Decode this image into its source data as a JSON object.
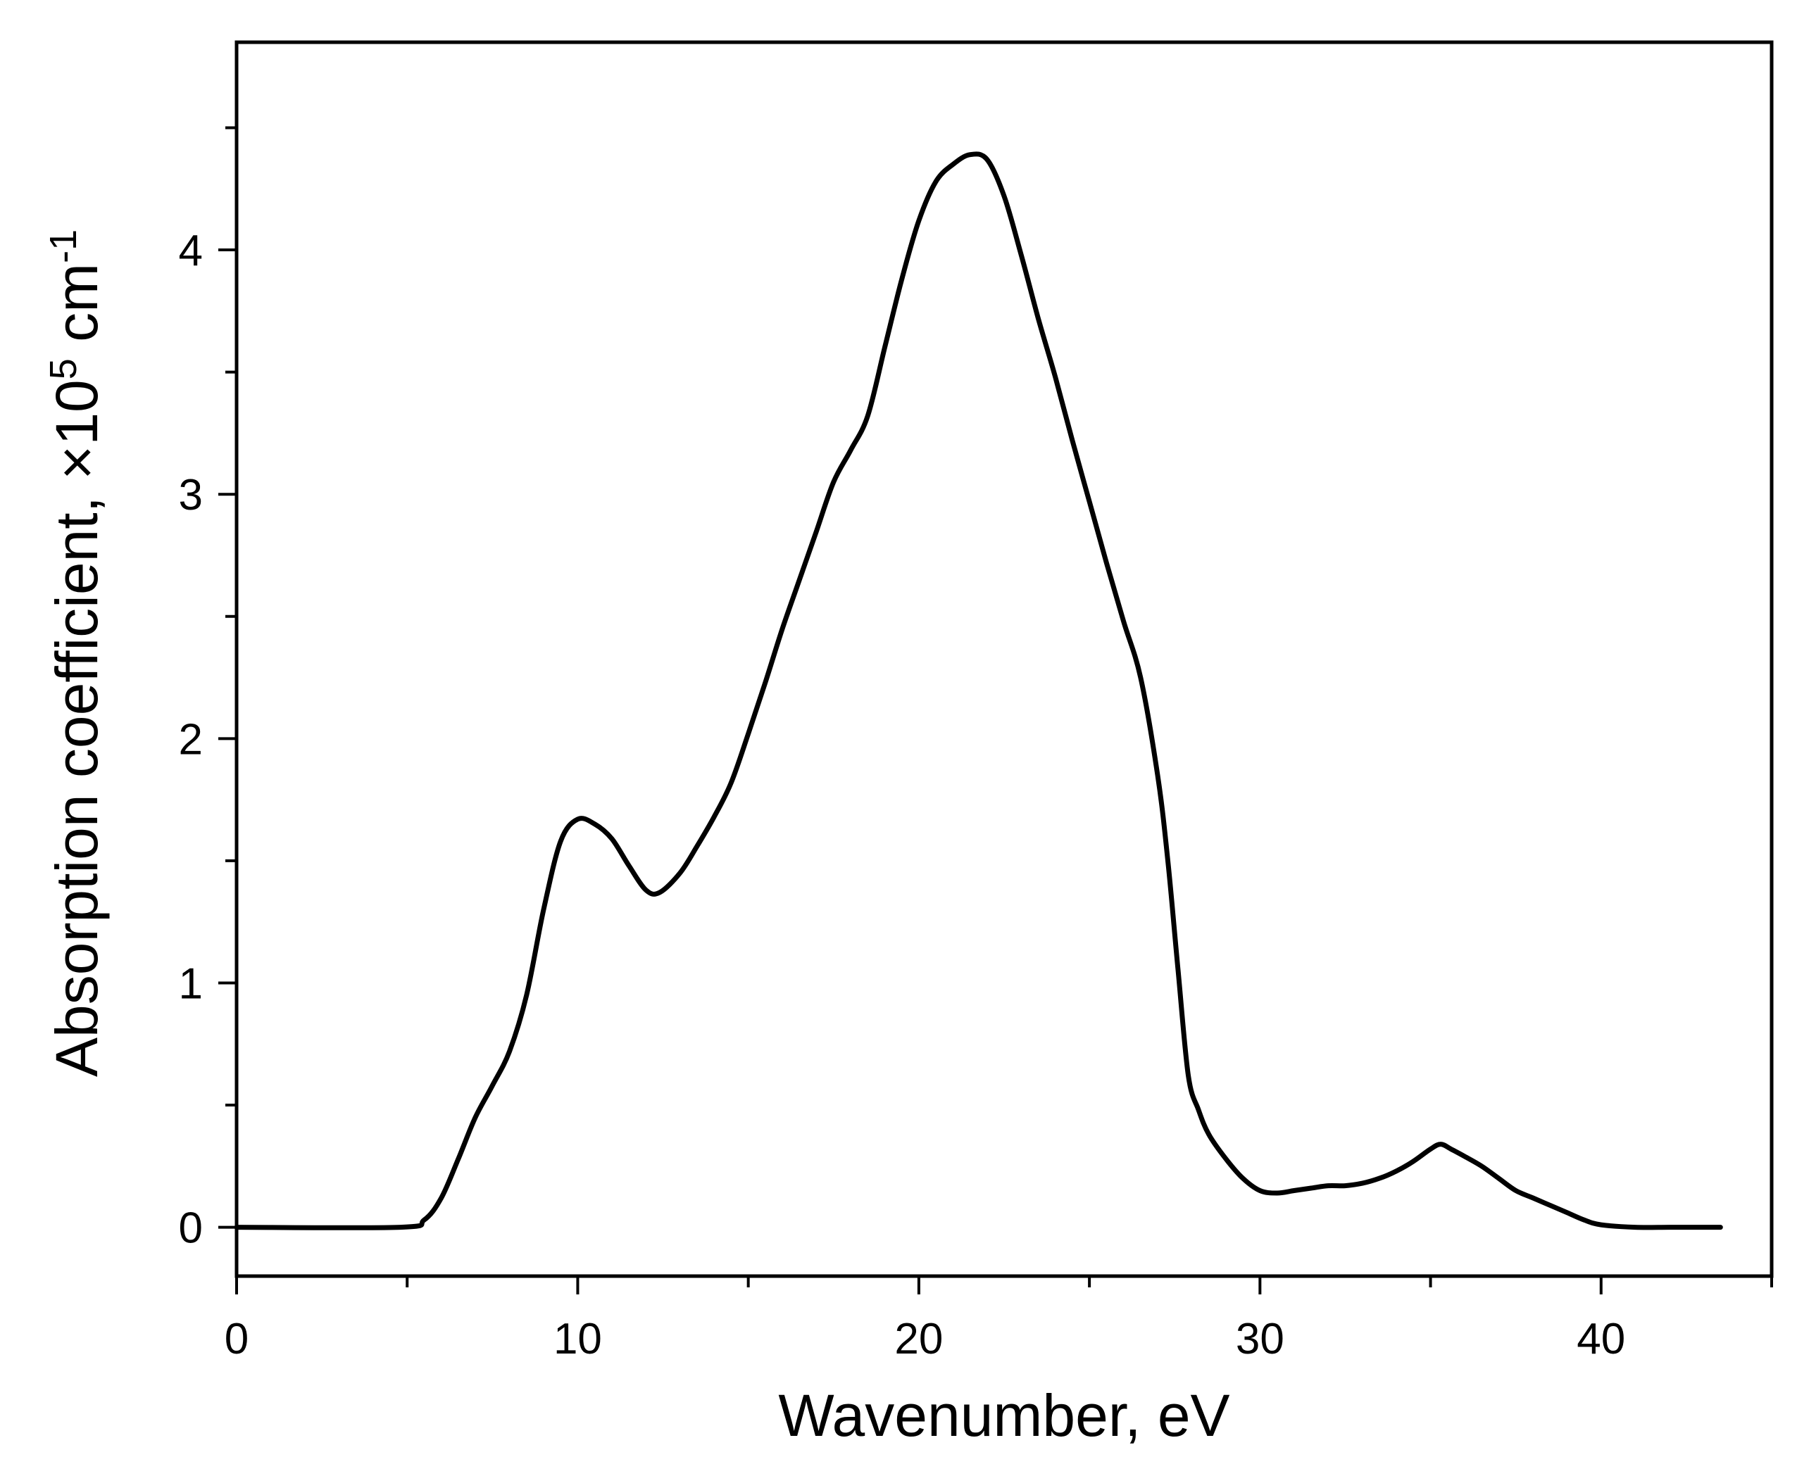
{
  "chart_data": {
    "type": "line",
    "title": "",
    "xlabel": "Wavenumber, eV",
    "ylabel_prefix": "Absorption coefficient, ×10",
    "ylabel_exp": "5",
    "ylabel_unit": " cm",
    "ylabel_unit_exp": "-1",
    "xlim": [
      0,
      45
    ],
    "ylim": [
      -0.2,
      4.85
    ],
    "xticks_major": [
      0,
      10,
      20,
      30,
      40
    ],
    "xticks_minor": [
      5,
      15,
      25,
      35,
      45
    ],
    "yticks_major": [
      0,
      1,
      2,
      3,
      4
    ],
    "yticks_minor": [
      0.5,
      1.5,
      2.5,
      3.5,
      4.5
    ],
    "xtick_labels": [
      "0",
      "10",
      "20",
      "30",
      "40"
    ],
    "ytick_labels": [
      "0",
      "1",
      "2",
      "3",
      "4"
    ],
    "grid": false,
    "legend": "none",
    "series": [
      {
        "color": "#000000",
        "x": [
          0,
          4.8,
          5.5,
          6.0,
          6.5,
          7.0,
          7.5,
          8.0,
          8.5,
          9.0,
          9.5,
          10.0,
          10.5,
          11.0,
          11.5,
          12.0,
          12.4,
          13.0,
          13.5,
          14.0,
          14.5,
          15.0,
          15.5,
          16.0,
          16.5,
          17.0,
          17.5,
          18.0,
          18.5,
          19.0,
          19.5,
          20.0,
          20.5,
          21.0,
          21.5,
          22.0,
          22.5,
          23.0,
          23.5,
          24.0,
          24.5,
          25.0,
          25.5,
          26.0,
          26.5,
          27.0,
          27.3,
          27.6,
          27.9,
          28.2,
          28.5,
          29.0,
          29.5,
          30.0,
          30.5,
          31.0,
          31.5,
          32.0,
          32.5,
          33.0,
          33.5,
          34.0,
          34.5,
          35.0,
          35.3,
          35.6,
          36.0,
          36.5,
          37.0,
          37.5,
          38.0,
          38.5,
          39.0,
          39.5,
          40.0,
          41.0,
          42.0,
          43.0,
          43.5
        ],
        "y": [
          0,
          0,
          0.03,
          0.12,
          0.28,
          0.45,
          0.58,
          0.72,
          0.95,
          1.3,
          1.58,
          1.67,
          1.65,
          1.59,
          1.48,
          1.38,
          1.37,
          1.45,
          1.56,
          1.68,
          1.82,
          2.02,
          2.23,
          2.45,
          2.65,
          2.85,
          3.05,
          3.18,
          3.32,
          3.6,
          3.88,
          4.12,
          4.28,
          4.35,
          4.39,
          4.37,
          4.22,
          3.98,
          3.72,
          3.48,
          3.22,
          2.97,
          2.72,
          2.48,
          2.25,
          1.85,
          1.5,
          1.05,
          0.62,
          0.48,
          0.38,
          0.28,
          0.2,
          0.15,
          0.14,
          0.15,
          0.16,
          0.17,
          0.17,
          0.18,
          0.2,
          0.23,
          0.27,
          0.32,
          0.34,
          0.32,
          0.29,
          0.25,
          0.2,
          0.15,
          0.12,
          0.09,
          0.06,
          0.03,
          0.01,
          0,
          0,
          0,
          0
        ]
      }
    ]
  }
}
